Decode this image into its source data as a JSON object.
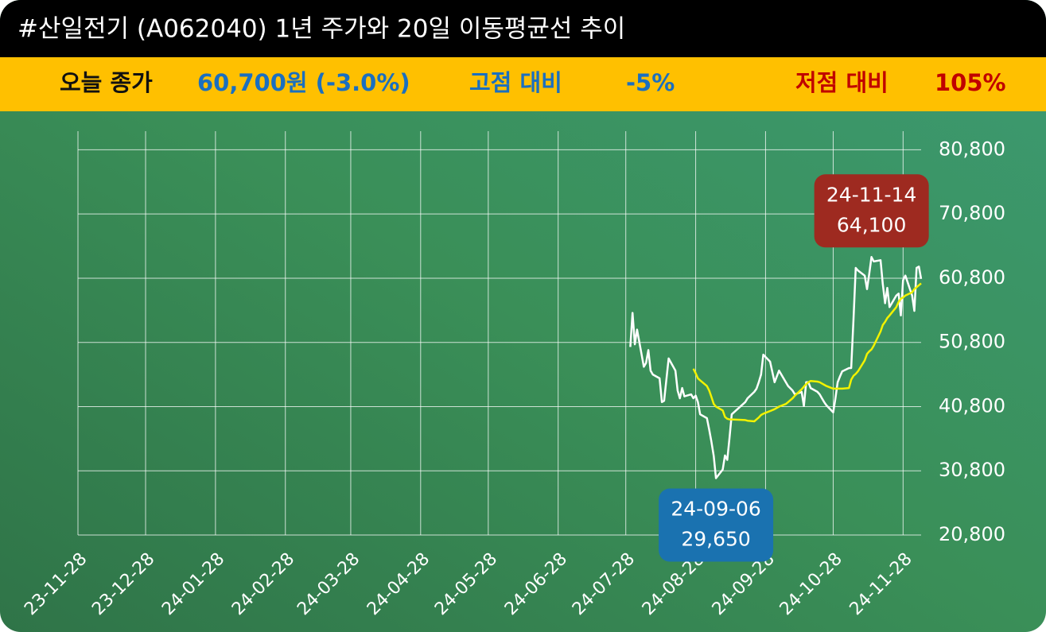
{
  "chart_data": {
    "type": "line",
    "title": "#산일전기 (A062040) 1년 주가와 20일 이동평균선 추이",
    "summary": [
      {
        "text": "오늘 종가",
        "color": "#111111"
      },
      {
        "text": "60,700원 (-3.0%)",
        "color": "#1a6fc0"
      },
      {
        "text": "고점 대비",
        "color": "#1a6fc0"
      },
      {
        "text": "-5%",
        "color": "#1a6fc0"
      },
      {
        "text": "저점 대비",
        "color": "#c00000"
      },
      {
        "text": "105%",
        "color": "#c00000"
      }
    ],
    "x": [
      "24-07-30",
      "24-07-31",
      "24-08-01",
      "24-08-02",
      "24-08-05",
      "24-08-06",
      "24-08-07",
      "24-08-08",
      "24-08-09",
      "24-08-12",
      "24-08-13",
      "24-08-14",
      "24-08-16",
      "24-08-19",
      "24-08-20",
      "24-08-21",
      "24-08-22",
      "24-08-23",
      "24-08-26",
      "24-08-27",
      "24-08-28",
      "24-08-29",
      "24-08-30",
      "24-09-02",
      "24-09-03",
      "24-09-04",
      "24-09-05",
      "24-09-06",
      "24-09-09",
      "24-09-10",
      "24-09-11",
      "24-09-12",
      "24-09-13",
      "24-09-19",
      "24-09-20",
      "24-09-23",
      "24-09-24",
      "24-09-25",
      "24-09-26",
      "24-09-27",
      "24-09-30",
      "24-10-02",
      "24-10-04",
      "24-10-07",
      "24-10-08",
      "24-10-10",
      "24-10-11",
      "24-10-14",
      "24-10-15",
      "24-10-16",
      "24-10-17",
      "24-10-18",
      "24-10-21",
      "24-10-22",
      "24-10-23",
      "24-10-24",
      "24-10-25",
      "24-10-28",
      "24-10-29",
      "24-10-30",
      "24-10-31",
      "24-11-01",
      "24-11-04",
      "24-11-05",
      "24-11-06",
      "24-11-07",
      "24-11-08",
      "24-11-11",
      "24-11-12",
      "24-11-13",
      "24-11-14",
      "24-11-15",
      "24-11-18",
      "24-11-19",
      "24-11-20",
      "24-11-21",
      "24-11-22",
      "24-11-25",
      "24-11-26",
      "24-11-27",
      "24-11-28",
      "24-11-29",
      "24-12-02",
      "24-12-03",
      "24-12-04",
      "24-12-05",
      "24-12-06"
    ],
    "series": [
      {
        "color": "#ffffff",
        "values": [
          50100,
          55400,
          50500,
          52800,
          47000,
          47600,
          49600,
          46400,
          45800,
          45200,
          41500,
          41700,
          48300,
          46400,
          43300,
          42100,
          43700,
          42400,
          42700,
          42100,
          42500,
          41500,
          39600,
          39000,
          37200,
          35300,
          33100,
          29650,
          31000,
          33200,
          32500,
          35900,
          39600,
          41500,
          42100,
          43100,
          43600,
          44600,
          45800,
          48900,
          47800,
          44600,
          46400,
          44600,
          44000,
          43300,
          42700,
          43100,
          40900,
          44600,
          44600,
          43700,
          43100,
          42700,
          42100,
          41500,
          41000,
          39900,
          42100,
          44600,
          45500,
          46300,
          46800,
          46800,
          54400,
          62400,
          62000,
          61200,
          59100,
          61500,
          64100,
          63400,
          63600,
          59900,
          56900,
          59300,
          56300,
          58100,
          58400,
          55000,
          60500,
          61200,
          58100,
          55700,
          62400,
          62600,
          60700
        ]
      },
      {
        "color": "#f2f200",
        "values": [
          null,
          null,
          null,
          null,
          null,
          null,
          null,
          null,
          null,
          null,
          null,
          null,
          null,
          null,
          null,
          null,
          null,
          null,
          null,
          46700,
          46000,
          45200,
          44900,
          44000,
          43300,
          42300,
          41200,
          40800,
          40200,
          39200,
          38900,
          38800,
          38800,
          38700,
          38600,
          38500,
          38800,
          39100,
          39500,
          39700,
          40100,
          40400,
          40800,
          41200,
          41500,
          42100,
          42500,
          43500,
          43900,
          44300,
          44600,
          44800,
          44700,
          44600,
          44400,
          44200,
          44000,
          43600,
          43600,
          43600,
          43600,
          43600,
          43700,
          45000,
          45600,
          45900,
          46300,
          48000,
          49000,
          49400,
          49700,
          50300,
          52500,
          53500,
          54000,
          54600,
          55000,
          56300,
          57100,
          57600,
          57800,
          58100,
          58600,
          59100,
          59400,
          59700,
          60000
        ]
      }
    ],
    "xlim": [
      "23-11-28",
      "24-12-06"
    ],
    "xticks": [
      "23-11-28",
      "23-12-28",
      "24-01-28",
      "24-02-28",
      "24-03-28",
      "24-04-28",
      "24-05-28",
      "24-06-28",
      "24-07-28",
      "24-08-28",
      "24-09-28",
      "24-10-28",
      "24-11-28"
    ],
    "ylim": [
      20800,
      83700
    ],
    "yticks": [
      {
        "value": 20800,
        "label": "20,800"
      },
      {
        "value": 30800,
        "label": "30,800"
      },
      {
        "value": 40800,
        "label": "40,800"
      },
      {
        "value": 50800,
        "label": "50,800"
      },
      {
        "value": 60800,
        "label": "60,800"
      },
      {
        "value": 70800,
        "label": "70,800"
      },
      {
        "value": 80800,
        "label": "80,800"
      }
    ],
    "grid": true,
    "annotations": [
      {
        "x": "24-11-14",
        "value": 64100,
        "label": "64,100",
        "color": "#9e2a20",
        "side": "above"
      },
      {
        "x": "24-09-06",
        "value": 29650,
        "label": "29,650",
        "color": "#1a72b0",
        "side": "below"
      }
    ]
  }
}
